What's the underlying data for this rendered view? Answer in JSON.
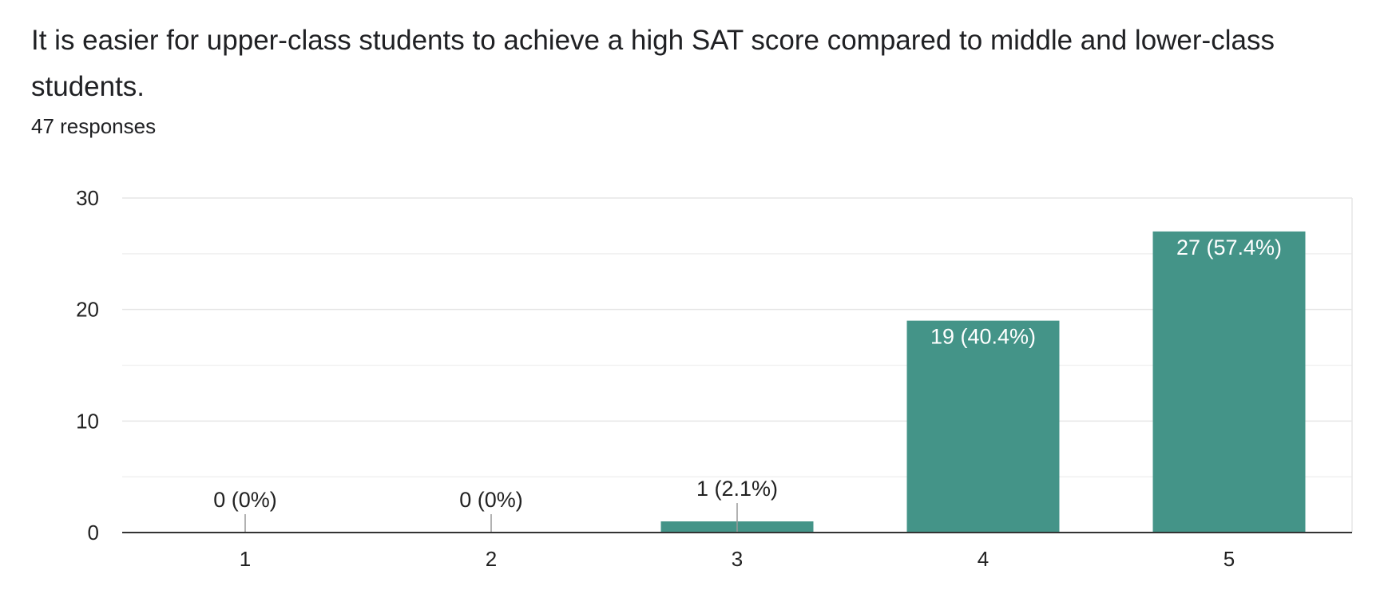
{
  "question": {
    "title": "It is easier for upper-class students to achieve a high SAT score compared to middle and lower-class students.",
    "response_count": "47 responses"
  },
  "colors": {
    "bar": "#449488",
    "bar_label_inside": "#ffffff",
    "bar_label_outside": "#222222",
    "grid_major": "#e6e6e6",
    "grid_minor": "#f1f1f1",
    "axis": "#333333",
    "leader": "#999999"
  },
  "chart_data": {
    "type": "bar",
    "categories": [
      "1",
      "2",
      "3",
      "4",
      "5"
    ],
    "values": [
      0,
      0,
      1,
      19,
      27
    ],
    "data_labels": [
      "0 (0%)",
      "0 (0%)",
      "1 (2.1%)",
      "19 (40.4%)",
      "27 (57.4%)"
    ],
    "title": "It is easier for upper-class students to achieve a high SAT score compared to middle and lower-class students.",
    "xlabel": "",
    "ylabel": "",
    "ylim": [
      0,
      30
    ],
    "yticks": [
      0,
      10,
      20,
      30
    ],
    "grid": true,
    "legend": "none"
  }
}
